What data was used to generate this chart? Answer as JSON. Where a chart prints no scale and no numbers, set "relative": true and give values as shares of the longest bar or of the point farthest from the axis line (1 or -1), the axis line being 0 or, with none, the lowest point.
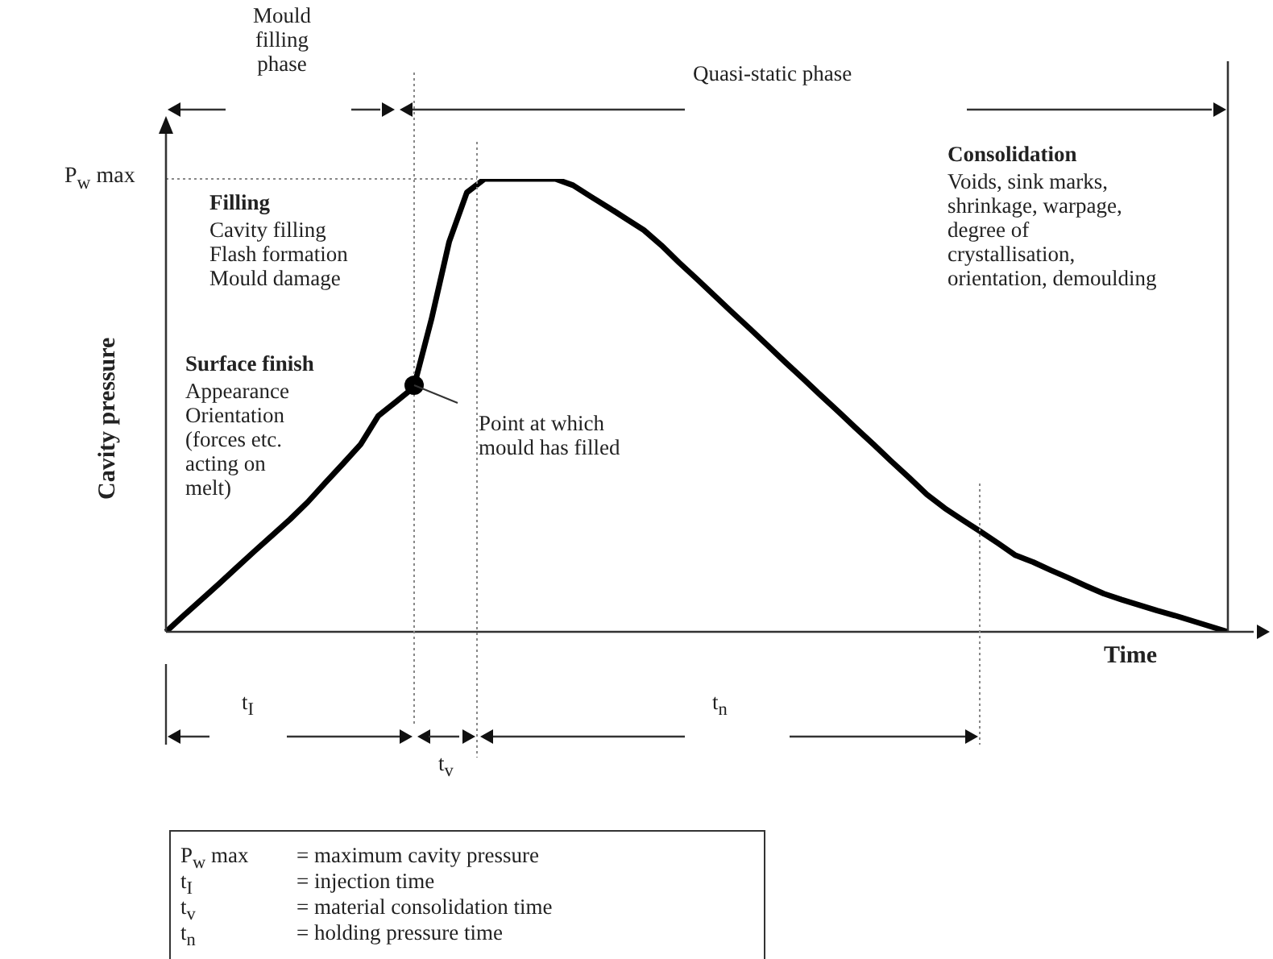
{
  "chart_data": {
    "type": "line",
    "relative": true,
    "marker": "none",
    "color": "#000000",
    "xlabel": "Time",
    "ylabel": "Cavity pressure",
    "categories": [
      null,
      null,
      null,
      null,
      null,
      null,
      null,
      null,
      null,
      null,
      null,
      null,
      null,
      null,
      null,
      null,
      null,
      null,
      null,
      null,
      null,
      null,
      null,
      null,
      null,
      null,
      null,
      null,
      null,
      null,
      null,
      null,
      null,
      null,
      null,
      null,
      null,
      null,
      null,
      null,
      null,
      null,
      null,
      null,
      null,
      null,
      null,
      null,
      null,
      null,
      null,
      null,
      null,
      null,
      null,
      null,
      null,
      null,
      null,
      null,
      null
    ],
    "values": [
      0,
      0.036,
      0.071,
      0.106,
      0.142,
      0.178,
      0.213,
      0.248,
      0.286,
      0.329,
      0.371,
      0.414,
      0.477,
      0.508,
      0.54,
      0.69,
      0.861,
      0.97,
      1,
      1,
      1,
      1,
      1,
      0.986,
      0.961,
      0.937,
      0.912,
      0.887,
      0.853,
      0.815,
      0.779,
      0.742,
      0.705,
      0.669,
      0.632,
      0.595,
      0.559,
      0.522,
      0.486,
      0.449,
      0.413,
      0.376,
      0.34,
      0.303,
      0.273,
      0.247,
      0.222,
      0.196,
      0.169,
      0.154,
      0.136,
      0.119,
      0.101,
      0.084,
      0.071,
      0.059,
      0.047,
      0.036,
      0.024,
      0.012,
      0
    ],
    "ref_lines": [
      {
        "axis": "y",
        "value": 1,
        "label": "P$_{w}$ max",
        "line_style": "dotted",
        "color": "#888888"
      }
    ],
    "annotations": [
      "Mould filling phase",
      "Quasi-static phase",
      "Filling",
      "Cavity filling Flash formation Mould damage",
      "Surface finish",
      "Appearance Orientation (forces etc. acting on melt)",
      "Point at which mould has filled",
      "Consolidation",
      "Voids, sink marks, shrinkage, warpage, degree of crystallisation, orientation, demoulding",
      "t$_{I}$",
      "t$_{v}$",
      "t$_{n}$",
      "P$_{w}$ max",
      "= maximum cavity pressure",
      "t$_{I}$",
      "= injection time",
      "t$_{v}$",
      "= material consolidation time",
      "t$_{n}$",
      "= holding pressure time"
    ]
  }
}
